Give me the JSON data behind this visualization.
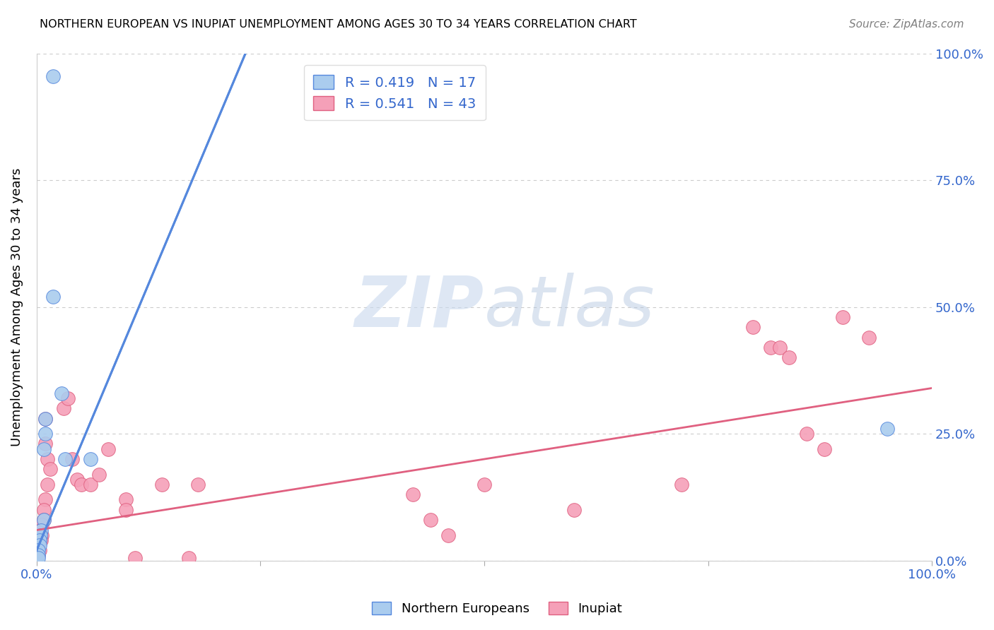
{
  "title": "NORTHERN EUROPEAN VS INUPIAT UNEMPLOYMENT AMONG AGES 30 TO 34 YEARS CORRELATION CHART",
  "source": "Source: ZipAtlas.com",
  "ylabel": "Unemployment Among Ages 30 to 34 years",
  "xlim": [
    0,
    1
  ],
  "ylim": [
    0,
    1
  ],
  "ytick_values": [
    0,
    0.25,
    0.5,
    0.75,
    1.0
  ],
  "ytick_labels_right": [
    "0.0%",
    "25.0%",
    "50.0%",
    "75.0%",
    "100.0%"
  ],
  "xtick_values": [
    0,
    0.25,
    0.5,
    0.75,
    1.0
  ],
  "xtick_labels": [
    "0.0%",
    "",
    "",
    "",
    "100.0%"
  ],
  "ne_R": 0.419,
  "ne_N": 17,
  "inupiat_R": 0.541,
  "inupiat_N": 43,
  "ne_line_color": "#5588dd",
  "ne_line_style": "--",
  "inupiat_line_color": "#e06080",
  "inupiat_line_style": "-",
  "ne_scatter_color": "#aaccee",
  "ne_edge_color": "#5588dd",
  "inupiat_scatter_color": "#f5a0b8",
  "inupiat_edge_color": "#e06080",
  "watermark_zip": "ZIP",
  "watermark_atlas": "atlas",
  "background_color": "#ffffff",
  "grid_color": "#cccccc",
  "tick_color": "#3366cc",
  "northern_european_points": [
    [
      0.018,
      0.955
    ],
    [
      0.018,
      0.52
    ],
    [
      0.028,
      0.33
    ],
    [
      0.01,
      0.28
    ],
    [
      0.01,
      0.25
    ],
    [
      0.032,
      0.2
    ],
    [
      0.008,
      0.22
    ],
    [
      0.008,
      0.08
    ],
    [
      0.005,
      0.06
    ],
    [
      0.004,
      0.05
    ],
    [
      0.003,
      0.04
    ],
    [
      0.003,
      0.03
    ],
    [
      0.002,
      0.02
    ],
    [
      0.002,
      0.01
    ],
    [
      0.002,
      0.005
    ],
    [
      0.06,
      0.2
    ],
    [
      0.95,
      0.26
    ]
  ],
  "inupiat_points": [
    [
      0.01,
      0.28
    ],
    [
      0.01,
      0.23
    ],
    [
      0.012,
      0.2
    ],
    [
      0.015,
      0.18
    ],
    [
      0.012,
      0.15
    ],
    [
      0.01,
      0.12
    ],
    [
      0.008,
      0.1
    ],
    [
      0.008,
      0.08
    ],
    [
      0.006,
      0.07
    ],
    [
      0.006,
      0.05
    ],
    [
      0.005,
      0.04
    ],
    [
      0.004,
      0.06
    ],
    [
      0.003,
      0.04
    ],
    [
      0.003,
      0.02
    ],
    [
      0.002,
      0.01
    ],
    [
      0.03,
      0.3
    ],
    [
      0.035,
      0.32
    ],
    [
      0.04,
      0.2
    ],
    [
      0.045,
      0.16
    ],
    [
      0.05,
      0.15
    ],
    [
      0.06,
      0.15
    ],
    [
      0.07,
      0.17
    ],
    [
      0.08,
      0.22
    ],
    [
      0.1,
      0.12
    ],
    [
      0.1,
      0.1
    ],
    [
      0.11,
      0.005
    ],
    [
      0.14,
      0.15
    ],
    [
      0.17,
      0.005
    ],
    [
      0.18,
      0.15
    ],
    [
      0.42,
      0.13
    ],
    [
      0.44,
      0.08
    ],
    [
      0.46,
      0.05
    ],
    [
      0.5,
      0.15
    ],
    [
      0.6,
      0.1
    ],
    [
      0.72,
      0.15
    ],
    [
      0.8,
      0.46
    ],
    [
      0.82,
      0.42
    ],
    [
      0.83,
      0.42
    ],
    [
      0.84,
      0.4
    ],
    [
      0.86,
      0.25
    ],
    [
      0.88,
      0.22
    ],
    [
      0.9,
      0.48
    ],
    [
      0.93,
      0.44
    ]
  ],
  "ne_slope": 4.2,
  "ne_intercept": 0.02,
  "inupiat_slope": 0.28,
  "inupiat_intercept": 0.06
}
